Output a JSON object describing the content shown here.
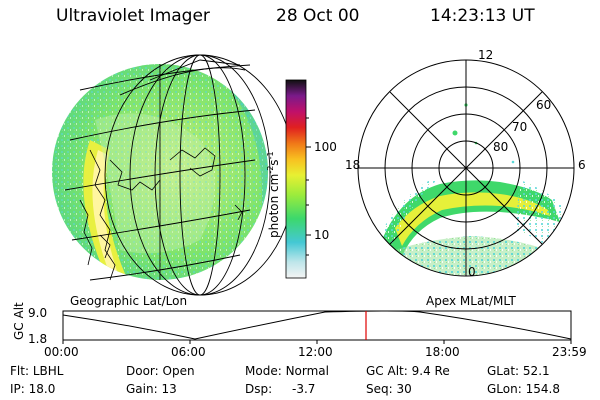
{
  "header": {
    "instrument": "Ultraviolet Imager",
    "date": "28 Oct 00",
    "time": "14:23:13 UT"
  },
  "colorbar": {
    "unit_main": "photon cm",
    "unit_exp1": "-2",
    "unit_mid": "s",
    "unit_exp2": "-1",
    "tick_100": "100",
    "tick_10": "10"
  },
  "left_panel": {
    "caption": "Geographic Lat/Lon"
  },
  "right_panel": {
    "caption": "Apex MLat/MLT",
    "mlt_top": "12",
    "mlt_left": "18",
    "mlt_right": "6",
    "mlt_bottom": "0",
    "lat_60": "60",
    "lat_70": "70",
    "lat_80": "80"
  },
  "altitude_strip": {
    "axis_label": "GC Alt",
    "y_max": "9.0",
    "y_min": "1.8",
    "x_ticks": [
      "00:00",
      "06:00",
      "12:00",
      "18:00",
      "23:59"
    ]
  },
  "status": {
    "flt_label": "Flt:",
    "flt_value": "LBHL",
    "door_label": "Door:",
    "door_value": "Open",
    "mode_label": "Mode:",
    "mode_value": "Normal",
    "gcalt_label": "GC Alt:",
    "gcalt_value": "9.4 Re",
    "glat_label": "GLat:",
    "glat_value": "52.1",
    "ip_label": "IP:",
    "ip_value": "18.0",
    "gain_label": "Gain:",
    "gain_value": "13",
    "dsp_label": "Dsp:",
    "dsp_value": "-3.7",
    "seq_label": "Seq:",
    "seq_value": "30",
    "glon_label": "GLon:",
    "glon_value": "154.8"
  },
  "colors": {
    "ring_green": "#3fd86a",
    "ring_yellow": "#e6f03a",
    "ring_light": "#bff0a8",
    "speckle_cyan": "#5ad7d7",
    "marker_red": "#e00000"
  }
}
